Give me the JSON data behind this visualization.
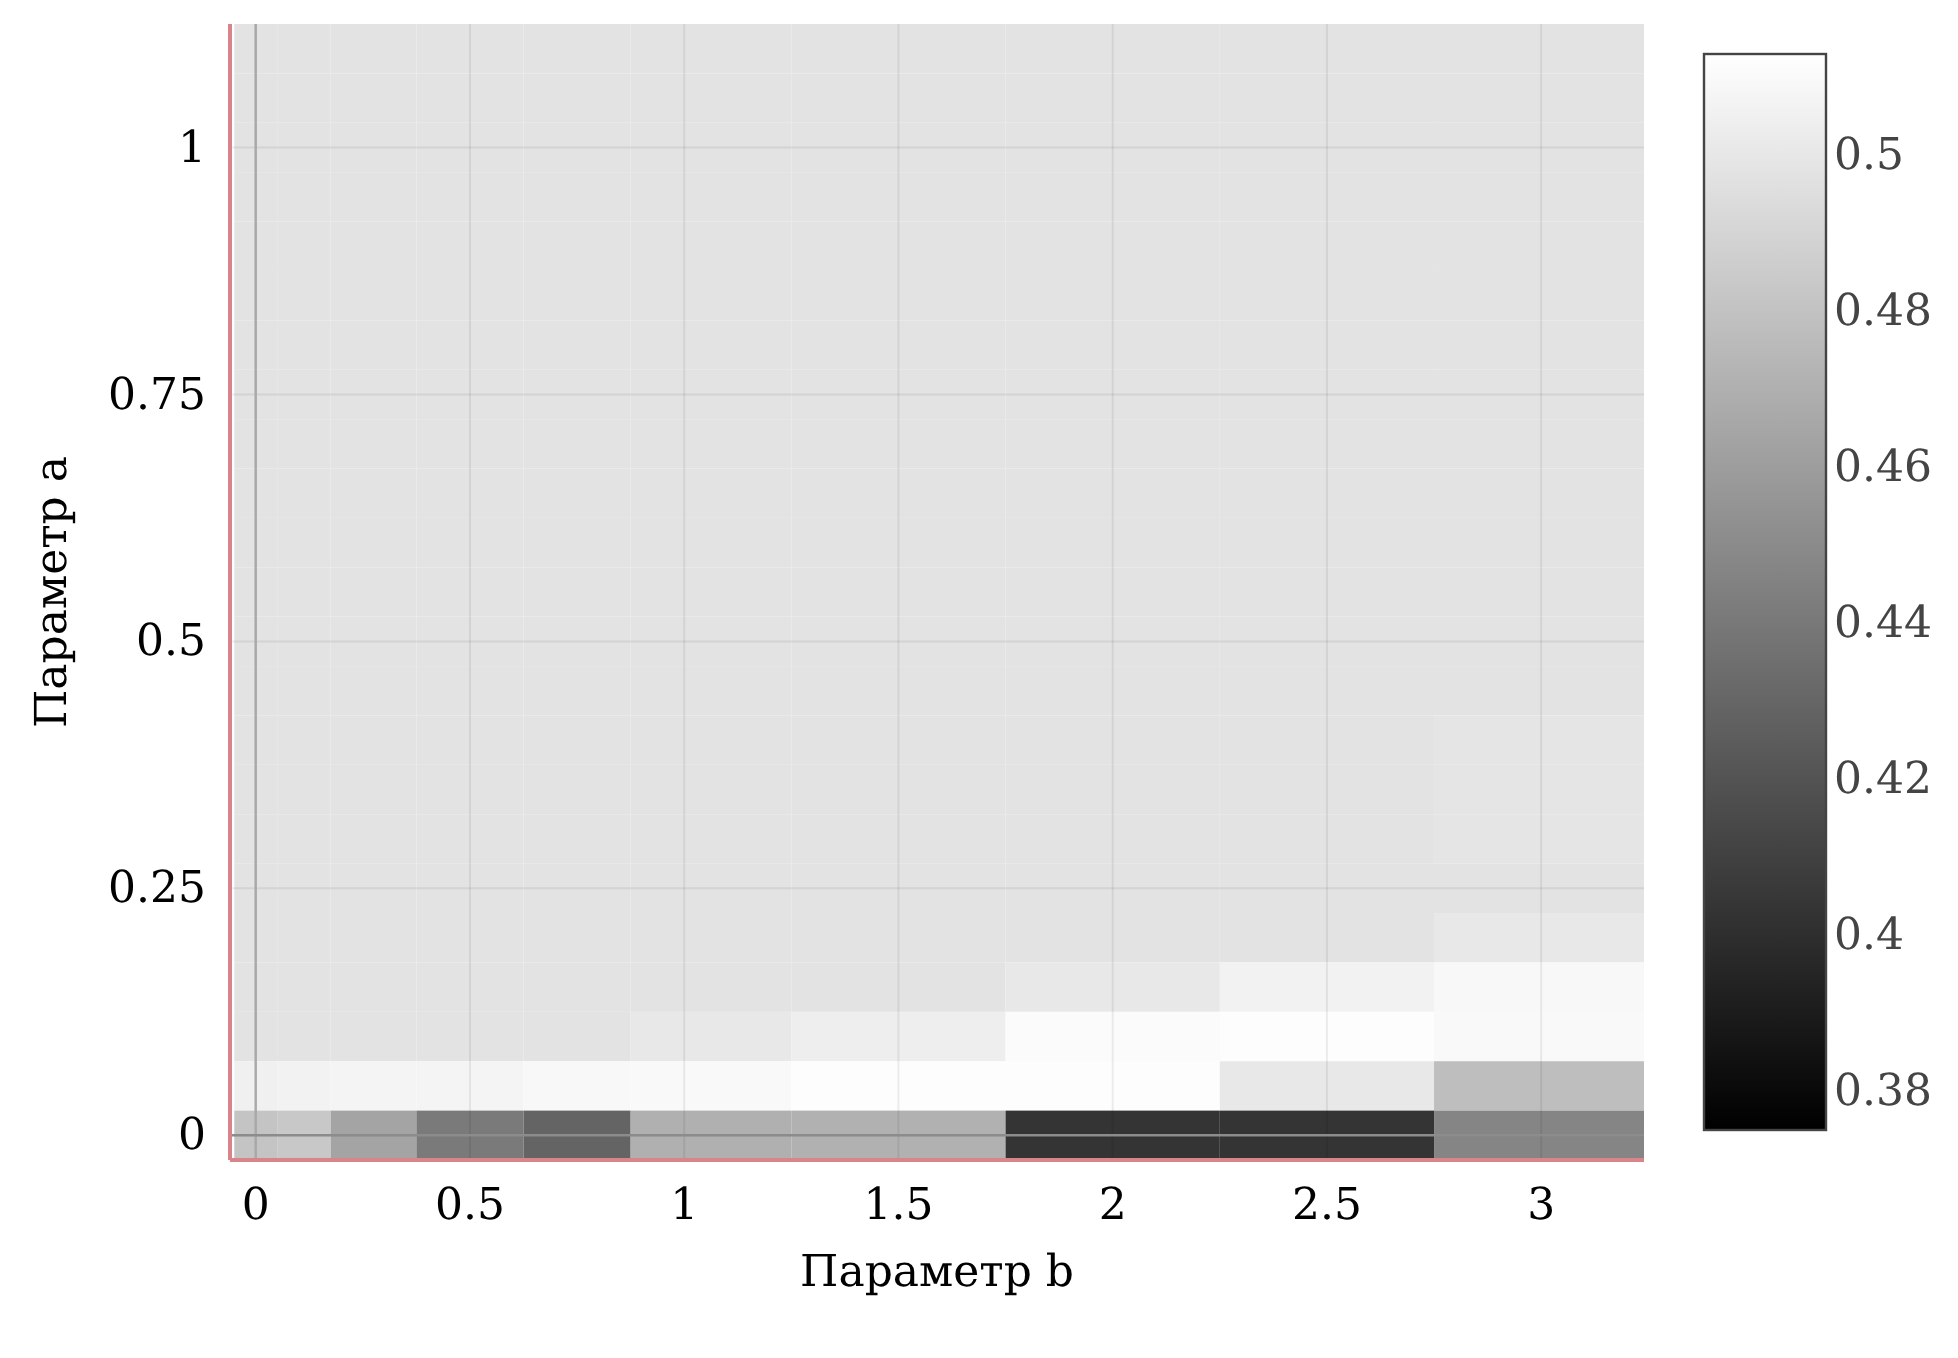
{
  "chart_data": {
    "type": "heatmap",
    "xlabel": "Параметр b",
    "ylabel": "Параметр a",
    "x": [
      0,
      0.1,
      0.25,
      0.5,
      0.75,
      1,
      1.5,
      2,
      2.5,
      3
    ],
    "y": [
      1.1,
      1.05,
      1,
      0.95,
      0.9,
      0.85,
      0.8,
      0.75,
      0.7,
      0.65,
      0.6,
      0.55,
      0.5,
      0.45,
      0.4,
      0.35,
      0.3,
      0.25,
      0.2,
      0.15,
      0.1,
      0.05,
      0
    ],
    "cells": [
      [
        0.498,
        0.498,
        0.498,
        0.498,
        0.498,
        0.498,
        0.498,
        0.498,
        0.498,
        0.498
      ],
      [
        0.498,
        0.498,
        0.498,
        0.498,
        0.498,
        0.498,
        0.498,
        0.498,
        0.498,
        0.498
      ],
      [
        0.498,
        0.498,
        0.498,
        0.498,
        0.498,
        0.498,
        0.498,
        0.498,
        0.498,
        0.498
      ],
      [
        0.498,
        0.498,
        0.498,
        0.498,
        0.498,
        0.498,
        0.498,
        0.498,
        0.498,
        0.498
      ],
      [
        0.498,
        0.498,
        0.498,
        0.498,
        0.498,
        0.498,
        0.498,
        0.498,
        0.498,
        0.498
      ],
      [
        0.498,
        0.498,
        0.498,
        0.498,
        0.498,
        0.498,
        0.498,
        0.498,
        0.498,
        0.498
      ],
      [
        0.498,
        0.498,
        0.498,
        0.498,
        0.498,
        0.498,
        0.498,
        0.498,
        0.498,
        0.498
      ],
      [
        0.498,
        0.498,
        0.498,
        0.498,
        0.498,
        0.498,
        0.498,
        0.498,
        0.498,
        0.498
      ],
      [
        0.498,
        0.498,
        0.498,
        0.498,
        0.498,
        0.498,
        0.498,
        0.498,
        0.498,
        0.498
      ],
      [
        0.498,
        0.498,
        0.498,
        0.498,
        0.498,
        0.498,
        0.498,
        0.498,
        0.498,
        0.498
      ],
      [
        0.498,
        0.498,
        0.498,
        0.498,
        0.498,
        0.498,
        0.498,
        0.498,
        0.498,
        0.498
      ],
      [
        0.498,
        0.498,
        0.498,
        0.498,
        0.498,
        0.498,
        0.498,
        0.498,
        0.498,
        0.498
      ],
      [
        0.498,
        0.498,
        0.498,
        0.498,
        0.498,
        0.498,
        0.498,
        0.498,
        0.498,
        0.498
      ],
      [
        0.498,
        0.498,
        0.498,
        0.498,
        0.498,
        0.498,
        0.498,
        0.498,
        0.498,
        0.498
      ],
      [
        0.498,
        0.498,
        0.498,
        0.498,
        0.498,
        0.498,
        0.498,
        0.498,
        0.498,
        0.499
      ],
      [
        0.498,
        0.498,
        0.498,
        0.498,
        0.498,
        0.498,
        0.498,
        0.498,
        0.498,
        0.499
      ],
      [
        0.498,
        0.498,
        0.498,
        0.498,
        0.498,
        0.498,
        0.498,
        0.498,
        0.498,
        0.499
      ],
      [
        0.498,
        0.498,
        0.498,
        0.498,
        0.498,
        0.498,
        0.498,
        0.498,
        0.498,
        0.498
      ],
      [
        0.498,
        0.498,
        0.498,
        0.498,
        0.498,
        0.498,
        0.498,
        0.498,
        0.498,
        0.5005
      ],
      [
        0.498,
        0.498,
        0.498,
        0.498,
        0.498,
        0.498,
        0.498,
        0.5005,
        0.506,
        0.509
      ],
      [
        0.498,
        0.498,
        0.498,
        0.498,
        0.498,
        0.5005,
        0.504,
        0.511,
        0.512,
        0.51
      ],
      [
        0.5047,
        0.506,
        0.507,
        0.507,
        0.509,
        0.51,
        0.512,
        0.512,
        0.5005,
        0.478
      ],
      [
        0.481,
        0.483,
        0.464,
        0.441,
        0.429,
        0.47,
        0.471,
        0.403,
        0.403,
        0.447
      ]
    ],
    "xlim": [
      -0.06,
      3.24
    ],
    "ylim": [
      -0.025,
      1.125
    ],
    "xticks": [
      0,
      0.5,
      1,
      1.5,
      2,
      2.5,
      3
    ],
    "yticks": [
      0,
      0.25,
      0.5,
      0.75,
      1
    ],
    "clim": [
      0.375,
      0.513
    ],
    "cticks": [
      0.38,
      0.4,
      0.42,
      0.44,
      0.46,
      0.48,
      0.5
    ],
    "grid": true,
    "ref_lines": [
      {
        "axis": "x",
        "value": 0,
        "color": "#a8a8a8"
      },
      {
        "axis": "y",
        "value": 0,
        "color": "#8c8c8c"
      }
    ]
  }
}
